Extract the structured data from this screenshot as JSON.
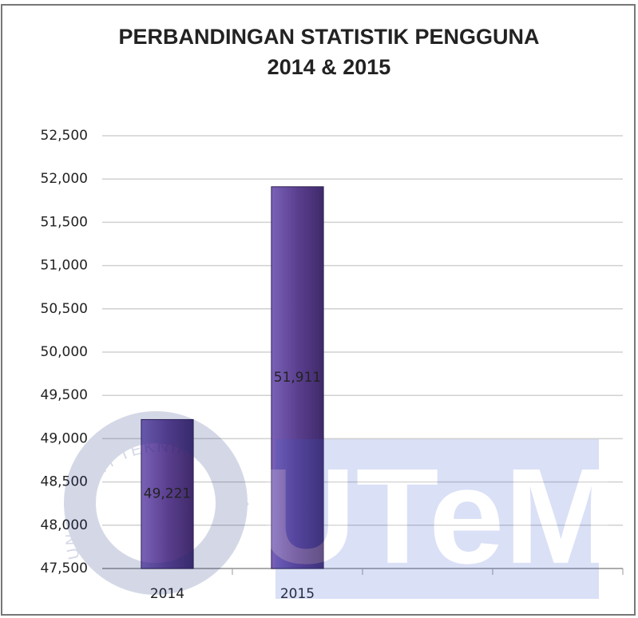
{
  "chart_data": {
    "type": "bar",
    "title": [
      "PERBANDINGAN STATISTIK PENGGUNA",
      "2014 & 2015"
    ],
    "categories": [
      "2014",
      "2015",
      null,
      null
    ],
    "values": [
      49221,
      51911,
      null,
      null
    ],
    "value_labels": [
      "49,221",
      "51,911",
      null,
      null
    ],
    "color": "#5b3f8f",
    "ylim": [
      47500,
      52500
    ],
    "yticks": [
      {
        "value": 47500,
        "label": "47,500"
      },
      {
        "value": 48000,
        "label": "48,000"
      },
      {
        "value": 48500,
        "label": "48,500"
      },
      {
        "value": 49000,
        "label": "49,000"
      },
      {
        "value": 49500,
        "label": "49,500"
      },
      {
        "value": 50000,
        "label": "50,000"
      },
      {
        "value": 50500,
        "label": "50,500"
      },
      {
        "value": 51000,
        "label": "51,000"
      },
      {
        "value": 51500,
        "label": "51,500"
      },
      {
        "value": 52000,
        "label": "52,000"
      },
      {
        "value": 52500,
        "label": "52,500"
      }
    ],
    "grid": true,
    "watermark": {
      "logo": "UTeM",
      "ring": "UNIVERSITI TEKNIKAL MALAYSIA MELAKA"
    }
  }
}
